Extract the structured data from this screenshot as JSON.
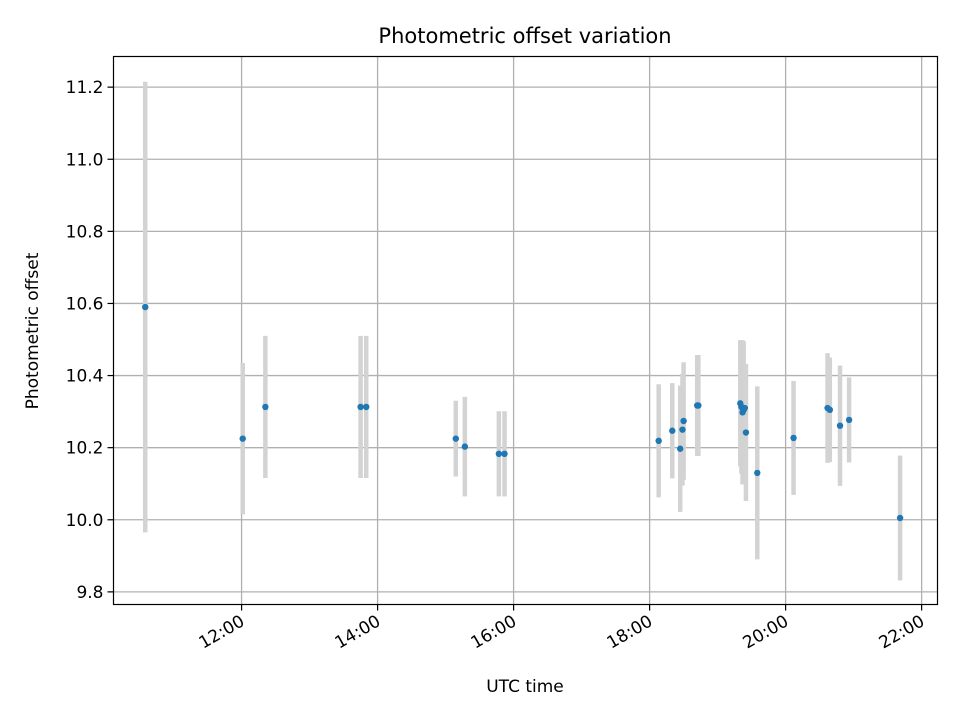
{
  "chart_data": {
    "type": "scatter",
    "title": "Photometric offset variation",
    "xlabel": "UTC time",
    "ylabel": "Photometric offset",
    "x_unit": "UTC time (HH:MM)",
    "xlim": [
      "10:07",
      "22:14"
    ],
    "ylim": [
      9.765,
      11.285
    ],
    "x_ticks": [
      "12:00",
      "14:00",
      "16:00",
      "18:00",
      "20:00",
      "22:00"
    ],
    "y_ticks": [
      9.8,
      10.0,
      10.2,
      10.4,
      10.6,
      10.8,
      11.0,
      11.2
    ],
    "y_tick_labels": [
      "9.8",
      "10.0",
      "10.2",
      "10.4",
      "10.6",
      "10.8",
      "11.0",
      "11.2"
    ],
    "grid": true,
    "legend": "none",
    "colors": {
      "point": "#1f77b4",
      "errorbar": "#d3d3d3",
      "grid": "#b0b0b0"
    },
    "series": [
      {
        "marker": "dot",
        "points": [
          {
            "t": "10:35",
            "y": 10.59,
            "yerr": 0.625
          },
          {
            "t": "12:01",
            "y": 10.225,
            "yerr": 0.21
          },
          {
            "t": "12:21",
            "y": 10.313,
            "yerr": 0.197
          },
          {
            "t": "13:45",
            "y": 10.313,
            "yerr": 0.197
          },
          {
            "t": "13:50",
            "y": 10.313,
            "yerr": 0.197
          },
          {
            "t": "15:09",
            "y": 10.225,
            "yerr": 0.105
          },
          {
            "t": "15:17",
            "y": 10.203,
            "yerr": 0.138
          },
          {
            "t": "15:47",
            "y": 10.183,
            "yerr": 0.118
          },
          {
            "t": "15:52",
            "y": 10.183,
            "yerr": 0.118
          },
          {
            "t": "18:08",
            "y": 10.219,
            "yerr": 0.157
          },
          {
            "t": "18:20",
            "y": 10.247,
            "yerr": 0.132
          },
          {
            "t": "18:27",
            "y": 10.197,
            "yerr": 0.175
          },
          {
            "t": "18:29",
            "y": 10.25,
            "yerr": 0.155
          },
          {
            "t": "18:30",
            "y": 10.274,
            "yerr": 0.163
          },
          {
            "t": "18:42",
            "y": 10.317,
            "yerr": 0.14
          },
          {
            "t": "18:43",
            "y": 10.317,
            "yerr": 0.14
          },
          {
            "t": "19:20",
            "y": 10.323,
            "yerr": 0.175
          },
          {
            "t": "19:21",
            "y": 10.313,
            "yerr": 0.185
          },
          {
            "t": "19:22",
            "y": 10.298,
            "yerr": 0.2
          },
          {
            "t": "19:23",
            "y": 10.305,
            "yerr": 0.19
          },
          {
            "t": "19:24",
            "y": 10.31,
            "yerr": 0.12
          },
          {
            "t": "19:25",
            "y": 10.242,
            "yerr": 0.19
          },
          {
            "t": "19:35",
            "y": 10.13,
            "yerr": 0.24
          },
          {
            "t": "20:07",
            "y": 10.227,
            "yerr": 0.158
          },
          {
            "t": "20:37",
            "y": 10.31,
            "yerr": 0.152
          },
          {
            "t": "20:39",
            "y": 10.305,
            "yerr": 0.145
          },
          {
            "t": "20:48",
            "y": 10.261,
            "yerr": 0.167
          },
          {
            "t": "20:56",
            "y": 10.277,
            "yerr": 0.118
          },
          {
            "t": "21:41",
            "y": 10.005,
            "yerr": 0.173
          }
        ]
      }
    ]
  }
}
